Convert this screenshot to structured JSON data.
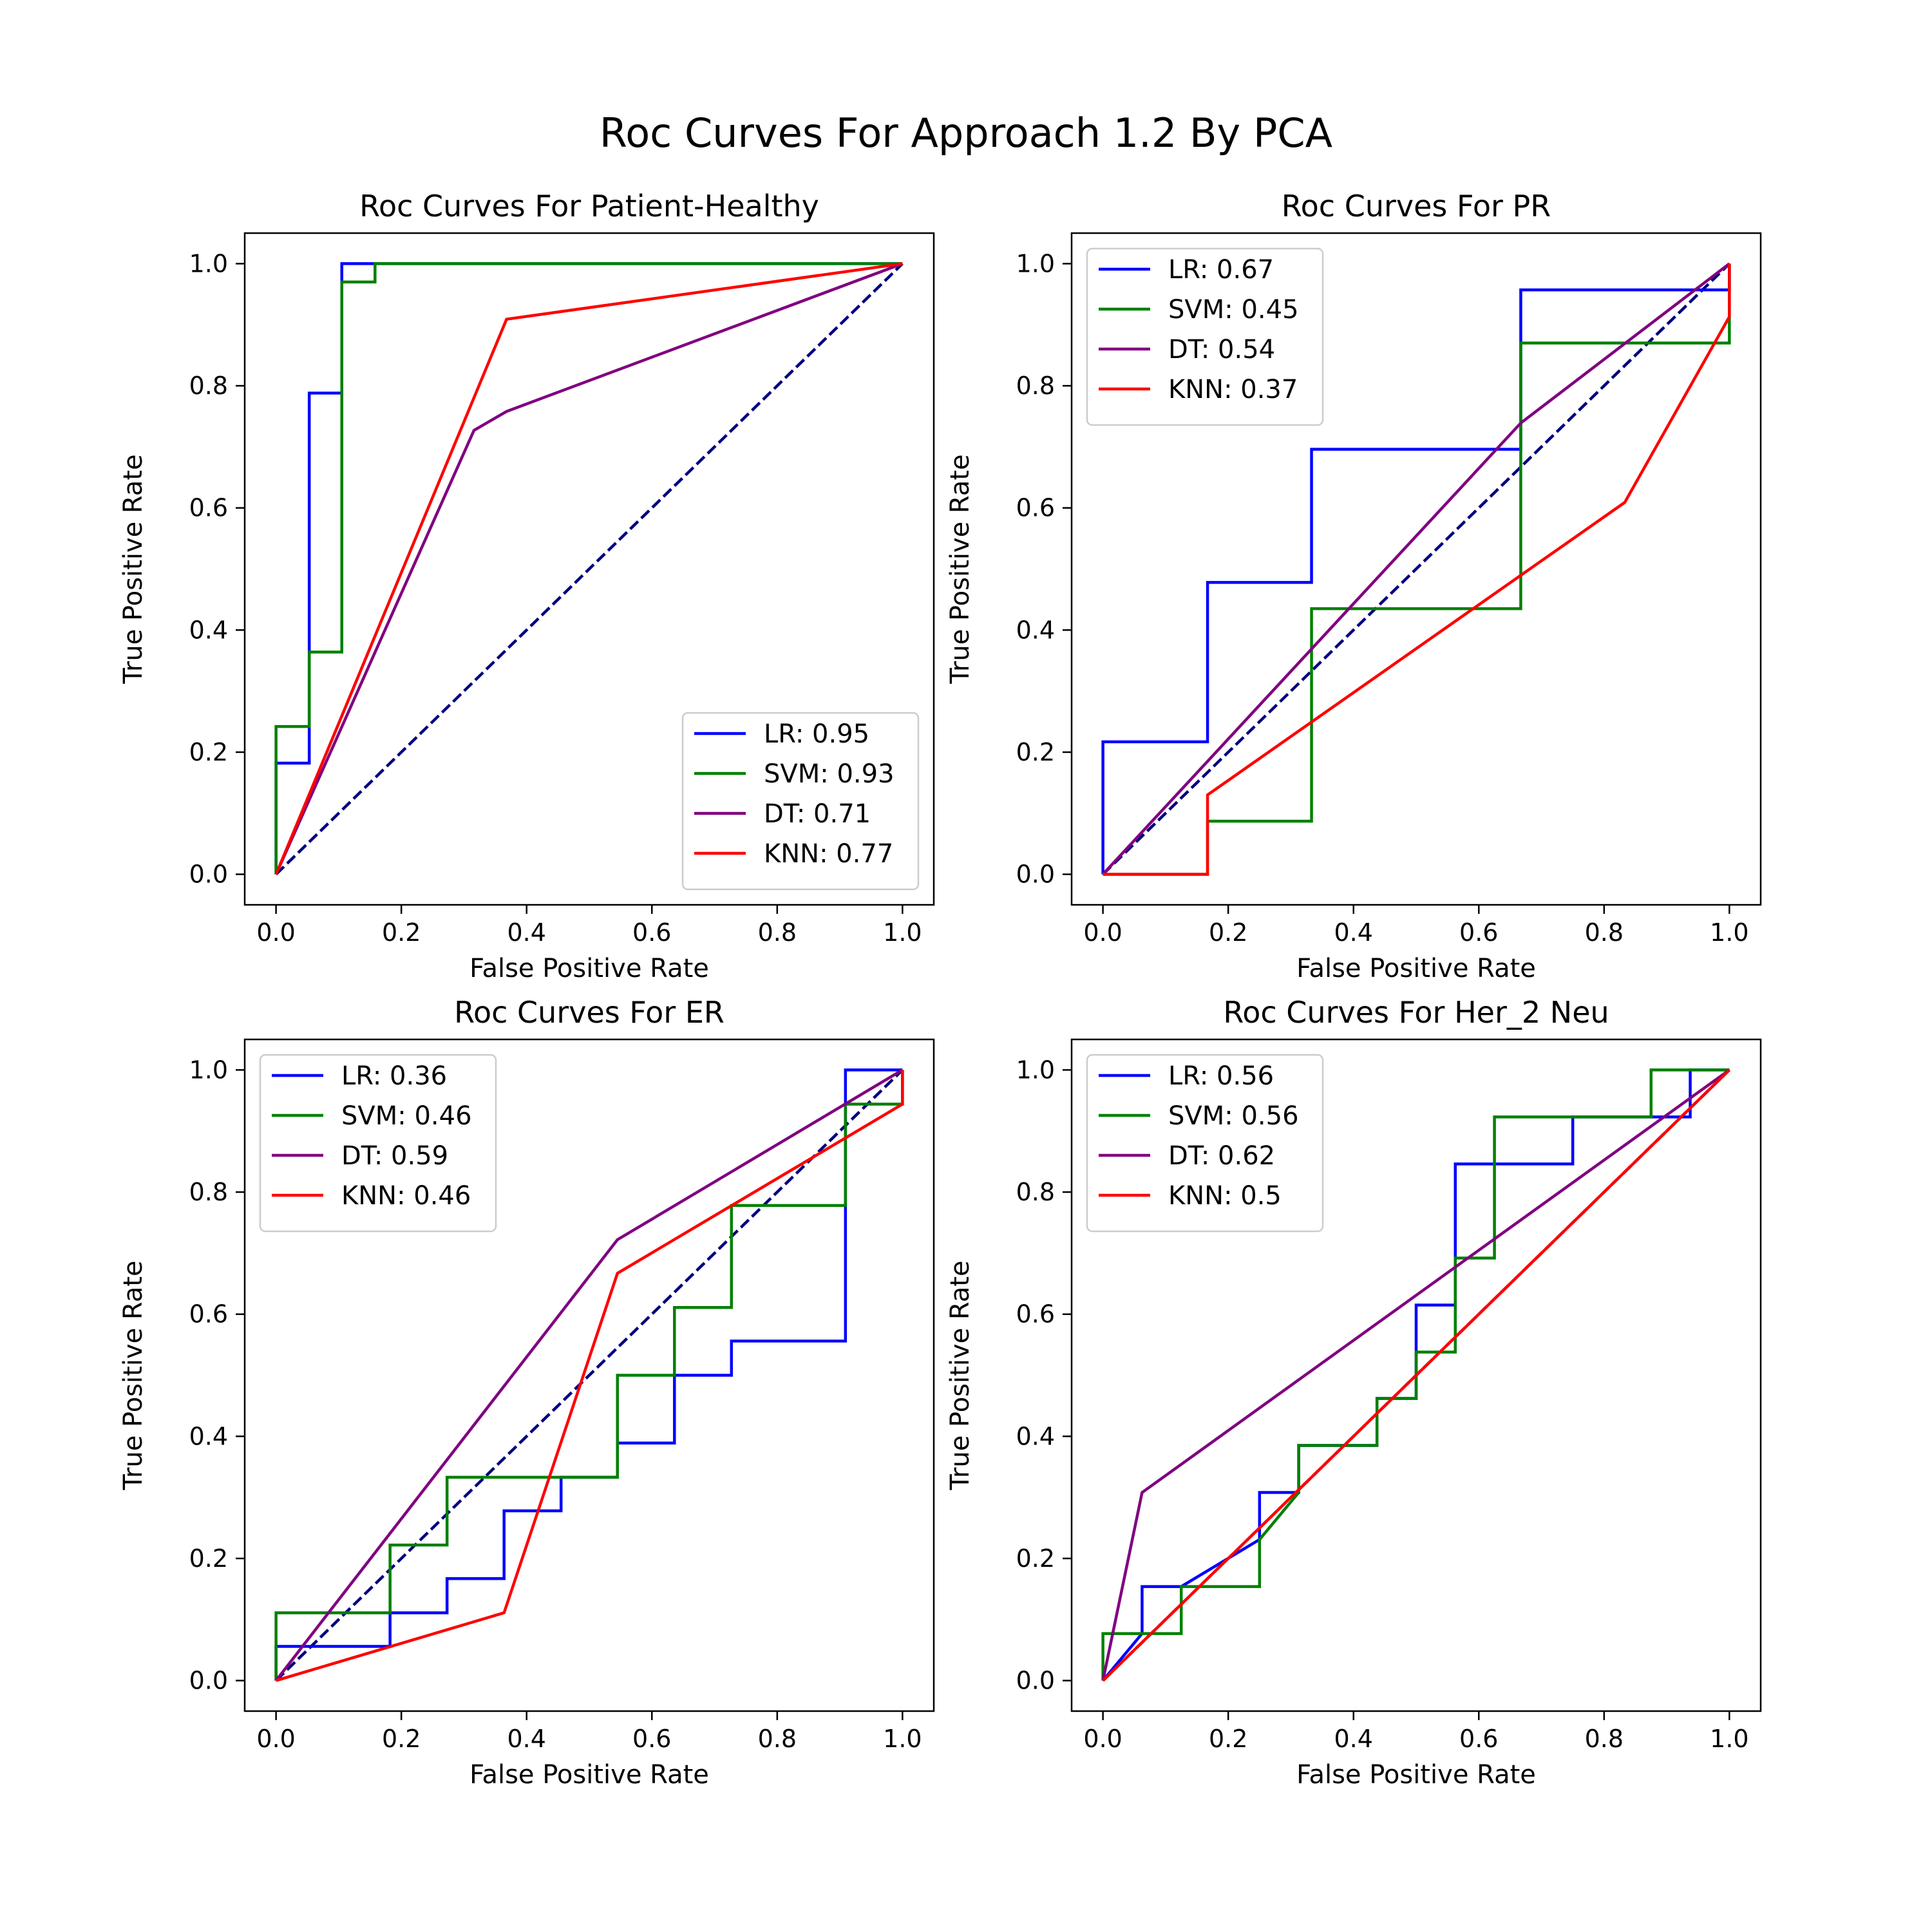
{
  "figure": {
    "title": "Roc Curves For Approach 1.2 By PCA"
  },
  "chart_data": [
    {
      "type": "line",
      "title": "Roc Curves For Patient-Healthy",
      "xlabel": "False Positive Rate",
      "ylabel": "True Positive Rate",
      "xlim": [
        -0.05,
        1.05
      ],
      "ylim": [
        -0.05,
        1.05
      ],
      "xticks": [
        0.0,
        0.2,
        0.4,
        0.6,
        0.8,
        1.0
      ],
      "yticks": [
        0.0,
        0.2,
        0.4,
        0.6,
        0.8,
        1.0
      ],
      "tick_labels": [
        "0.0",
        "0.2",
        "0.4",
        "0.6",
        "0.8",
        "1.0"
      ],
      "legend_position": "lower right",
      "grid": false,
      "series": [
        {
          "name": "LR: 0.95",
          "color": "#0000ff",
          "x": [
            0,
            0,
            0.053,
            0.053,
            0.105,
            0.105,
            1.0
          ],
          "y": [
            0,
            0.182,
            0.182,
            0.788,
            0.788,
            1.0,
            1.0
          ]
        },
        {
          "name": "SVM: 0.93",
          "color": "#008000",
          "x": [
            0,
            0,
            0.053,
            0.053,
            0.105,
            0.105,
            0.158,
            0.158,
            1.0
          ],
          "y": [
            0,
            0.242,
            0.242,
            0.364,
            0.364,
            0.97,
            0.97,
            1.0,
            1.0
          ]
        },
        {
          "name": "DT: 0.71",
          "color": "#800080",
          "x": [
            0,
            0.316,
            0.368,
            1.0
          ],
          "y": [
            0,
            0.727,
            0.758,
            1.0
          ]
        },
        {
          "name": "KNN: 0.77",
          "color": "#ff0000",
          "x": [
            0,
            0.368,
            1.0
          ],
          "y": [
            0,
            0.909,
            1.0
          ]
        }
      ],
      "reference_line": {
        "color": "#000080",
        "x": [
          0,
          1
        ],
        "y": [
          0,
          1
        ]
      }
    },
    {
      "type": "line",
      "title": "Roc Curves For PR",
      "xlabel": "False Positive Rate",
      "ylabel": "True Positive Rate",
      "xlim": [
        -0.05,
        1.05
      ],
      "ylim": [
        -0.05,
        1.05
      ],
      "xticks": [
        0.0,
        0.2,
        0.4,
        0.6,
        0.8,
        1.0
      ],
      "yticks": [
        0.0,
        0.2,
        0.4,
        0.6,
        0.8,
        1.0
      ],
      "tick_labels": [
        "0.0",
        "0.2",
        "0.4",
        "0.6",
        "0.8",
        "1.0"
      ],
      "legend_position": "upper left",
      "grid": false,
      "series": [
        {
          "name": "LR: 0.67",
          "color": "#0000ff",
          "x": [
            0,
            0,
            0.167,
            0.167,
            0.333,
            0.333,
            0.667,
            0.667,
            1.0,
            1.0
          ],
          "y": [
            0,
            0.217,
            0.217,
            0.478,
            0.478,
            0.696,
            0.696,
            0.957,
            0.957,
            1.0
          ]
        },
        {
          "name": "SVM: 0.45",
          "color": "#008000",
          "x": [
            0,
            0.167,
            0.167,
            0.333,
            0.333,
            0.667,
            0.667,
            1.0,
            1.0
          ],
          "y": [
            0,
            0,
            0.087,
            0.087,
            0.435,
            0.435,
            0.87,
            0.87,
            1.0
          ]
        },
        {
          "name": "DT: 0.54",
          "color": "#800080",
          "x": [
            0,
            0.667,
            1.0
          ],
          "y": [
            0,
            0.739,
            1.0
          ]
        },
        {
          "name": "KNN: 0.37",
          "color": "#ff0000",
          "x": [
            0,
            0.167,
            0.167,
            0.833,
            1.0,
            1.0
          ],
          "y": [
            0,
            0,
            0.13,
            0.609,
            0.913,
            1.0
          ]
        }
      ],
      "reference_line": {
        "color": "#000080",
        "x": [
          0,
          1
        ],
        "y": [
          0,
          1
        ]
      }
    },
    {
      "type": "line",
      "title": "Roc Curves For ER",
      "xlabel": "False Positive Rate",
      "ylabel": "True Positive Rate",
      "xlim": [
        -0.05,
        1.05
      ],
      "ylim": [
        -0.05,
        1.05
      ],
      "xticks": [
        0.0,
        0.2,
        0.4,
        0.6,
        0.8,
        1.0
      ],
      "yticks": [
        0.0,
        0.2,
        0.4,
        0.6,
        0.8,
        1.0
      ],
      "tick_labels": [
        "0.0",
        "0.2",
        "0.4",
        "0.6",
        "0.8",
        "1.0"
      ],
      "legend_position": "upper left",
      "grid": false,
      "series": [
        {
          "name": "LR: 0.36",
          "color": "#0000ff",
          "x": [
            0,
            0,
            0.182,
            0.182,
            0.273,
            0.273,
            0.364,
            0.364,
            0.455,
            0.455,
            0.545,
            0.545,
            0.636,
            0.636,
            0.727,
            0.727,
            0.909,
            0.909,
            1.0
          ],
          "y": [
            0,
            0.056,
            0.056,
            0.111,
            0.111,
            0.167,
            0.167,
            0.278,
            0.278,
            0.333,
            0.333,
            0.389,
            0.389,
            0.5,
            0.5,
            0.556,
            0.556,
            1.0,
            1.0
          ]
        },
        {
          "name": "SVM: 0.46",
          "color": "#008000",
          "x": [
            0,
            0,
            0.182,
            0.182,
            0.273,
            0.273,
            0.545,
            0.545,
            0.636,
            0.636,
            0.727,
            0.727,
            0.909,
            0.909,
            1.0,
            1.0
          ],
          "y": [
            0,
            0.111,
            0.111,
            0.222,
            0.222,
            0.333,
            0.333,
            0.5,
            0.5,
            0.611,
            0.611,
            0.778,
            0.778,
            0.944,
            0.944,
            1.0
          ]
        },
        {
          "name": "DT: 0.59",
          "color": "#800080",
          "x": [
            0,
            0.545,
            1.0
          ],
          "y": [
            0,
            0.722,
            1.0
          ]
        },
        {
          "name": "KNN: 0.46",
          "color": "#ff0000",
          "x": [
            0,
            0.364,
            0.545,
            1.0,
            1.0
          ],
          "y": [
            0,
            0.111,
            0.667,
            0.944,
            1.0
          ]
        }
      ],
      "reference_line": {
        "color": "#000080",
        "x": [
          0,
          1
        ],
        "y": [
          0,
          1
        ]
      }
    },
    {
      "type": "line",
      "title": "Roc Curves For Her_2 Neu",
      "xlabel": "False Positive Rate",
      "ylabel": "True Positive Rate",
      "xlim": [
        -0.05,
        1.05
      ],
      "ylim": [
        -0.05,
        1.05
      ],
      "xticks": [
        0.0,
        0.2,
        0.4,
        0.6,
        0.8,
        1.0
      ],
      "yticks": [
        0.0,
        0.2,
        0.4,
        0.6,
        0.8,
        1.0
      ],
      "tick_labels": [
        "0.0",
        "0.2",
        "0.4",
        "0.6",
        "0.8",
        "1.0"
      ],
      "legend_position": "upper left",
      "grid": false,
      "series": [
        {
          "name": "LR: 0.56",
          "color": "#0000ff",
          "x": [
            0,
            0.0625,
            0.0625,
            0.125,
            0.125,
            0.25,
            0.25,
            0.3125,
            0.3125,
            0.4375,
            0.4375,
            0.5,
            0.5,
            0.5625,
            0.5625,
            0.75,
            0.75,
            0.9375,
            0.9375,
            1.0
          ],
          "y": [
            0,
            0.077,
            0.154,
            0.154,
            0.154,
            0.231,
            0.308,
            0.308,
            0.385,
            0.385,
            0.462,
            0.462,
            0.615,
            0.615,
            0.846,
            0.846,
            0.923,
            0.923,
            1.0,
            1.0
          ]
        },
        {
          "name": "SVM: 0.56",
          "color": "#008000",
          "x": [
            0,
            0,
            0.125,
            0.125,
            0.25,
            0.25,
            0.3125,
            0.3125,
            0.4375,
            0.4375,
            0.5,
            0.5,
            0.5625,
            0.5625,
            0.625,
            0.625,
            0.875,
            0.875,
            1.0
          ],
          "y": [
            0,
            0.077,
            0.077,
            0.154,
            0.154,
            0.231,
            0.308,
            0.385,
            0.385,
            0.462,
            0.462,
            0.538,
            0.538,
            0.692,
            0.692,
            0.923,
            0.923,
            1.0,
            1.0
          ]
        },
        {
          "name": "DT: 0.62",
          "color": "#800080",
          "x": [
            0,
            0.0625,
            1.0
          ],
          "y": [
            0,
            0.308,
            1.0
          ]
        },
        {
          "name": "KNN: 0.5",
          "color": "#ff0000",
          "x": [
            0,
            1.0
          ],
          "y": [
            0,
            1.0
          ]
        }
      ],
      "reference_line": {
        "color": "#000080",
        "x": [
          0,
          1
        ],
        "y": [
          0,
          1
        ]
      }
    }
  ]
}
